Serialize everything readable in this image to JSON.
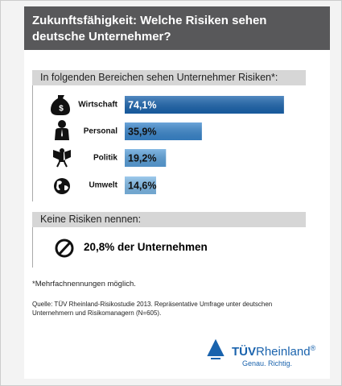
{
  "chart_data": {
    "type": "bar",
    "title": "Zukunftsfähigkeit: Welche Risiken sehen deutsche Unternehmer?",
    "subtitle": "In folgenden Bereichen sehen Unternehmer Risiken*:",
    "categories": [
      "Wirtschaft",
      "Personal",
      "Politik",
      "Umwelt"
    ],
    "values": [
      74.1,
      35.9,
      19.2,
      14.6
    ],
    "value_labels": [
      "74,1%",
      "35,9%",
      "19,2%",
      "14,6%"
    ],
    "colors": [
      "#1a63ad",
      "#3a86cc",
      "#5aa0da",
      "#7db8e6"
    ]
  },
  "no_risk": {
    "heading": "Keine Risiken nennen:",
    "text": "20,8% der Unternehmen"
  },
  "footnote": "*Mehrfachnennungen möglich.",
  "source": "Quelle: TÜV Rheinland-Risikostudie 2013. Repräsentative Umfrage unter deutschen Unternehmern und Risikomanagern (N=605).",
  "logo": {
    "brand_bold": "TÜV",
    "brand": "Rheinland",
    "mark": "®",
    "slogan": "Genau. Richtig."
  }
}
